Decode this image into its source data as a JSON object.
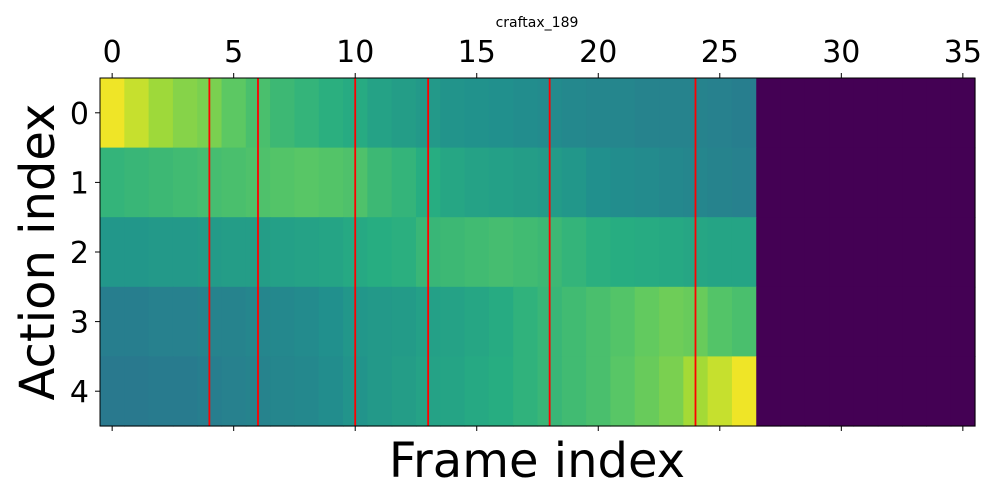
{
  "chart_data": {
    "type": "heatmap",
    "title": "craftax_189",
    "xlabel": "Frame index",
    "ylabel": "Action index",
    "x_ticks": [
      0,
      5,
      10,
      15,
      20,
      25,
      30,
      35
    ],
    "y_ticks": [
      0,
      1,
      2,
      3,
      4
    ],
    "xlim": [
      -0.5,
      35.5
    ],
    "ylim": [
      4.5,
      -0.5
    ],
    "x_tick_labels_position": "top",
    "grid": false,
    "legend": "none",
    "colormap": "viridis",
    "value_range": [
      0,
      1
    ],
    "frames_with_data": 27,
    "red_vertical_lines_x": [
      4,
      6,
      10,
      13,
      18,
      24
    ],
    "red_line_color": "#ff0000",
    "rows": [
      {
        "action": 0,
        "values": [
          0.98,
          0.92,
          0.86,
          0.82,
          0.8,
          0.75,
          0.71,
          0.68,
          0.66,
          0.64,
          0.62,
          0.58,
          0.56,
          0.54,
          0.52,
          0.51,
          0.5,
          0.49,
          0.48,
          0.47,
          0.46,
          0.46,
          0.45,
          0.45,
          0.45,
          0.44,
          0.43,
          0,
          0,
          0,
          0,
          0,
          0,
          0,
          0,
          0
        ]
      },
      {
        "action": 1,
        "values": [
          0.66,
          0.67,
          0.68,
          0.69,
          0.7,
          0.71,
          0.72,
          0.73,
          0.74,
          0.73,
          0.72,
          0.68,
          0.66,
          0.63,
          0.6,
          0.58,
          0.57,
          0.56,
          0.55,
          0.53,
          0.5,
          0.49,
          0.48,
          0.47,
          0.46,
          0.45,
          0.44,
          0,
          0,
          0,
          0,
          0,
          0,
          0,
          0,
          0
        ]
      },
      {
        "action": 2,
        "values": [
          0.53,
          0.53,
          0.54,
          0.54,
          0.55,
          0.56,
          0.56,
          0.57,
          0.58,
          0.59,
          0.61,
          0.63,
          0.64,
          0.67,
          0.68,
          0.69,
          0.7,
          0.69,
          0.68,
          0.66,
          0.64,
          0.63,
          0.62,
          0.61,
          0.6,
          0.59,
          0.59,
          0,
          0,
          0,
          0,
          0,
          0,
          0,
          0,
          0
        ]
      },
      {
        "action": 3,
        "values": [
          0.43,
          0.43,
          0.44,
          0.44,
          0.45,
          0.45,
          0.46,
          0.47,
          0.48,
          0.5,
          0.53,
          0.54,
          0.55,
          0.57,
          0.58,
          0.6,
          0.62,
          0.65,
          0.67,
          0.69,
          0.71,
          0.73,
          0.76,
          0.78,
          0.77,
          0.73,
          0.71,
          0,
          0,
          0,
          0,
          0,
          0,
          0,
          0,
          0
        ]
      },
      {
        "action": 4,
        "values": [
          0.41,
          0.41,
          0.42,
          0.42,
          0.43,
          0.44,
          0.45,
          0.46,
          0.47,
          0.49,
          0.52,
          0.54,
          0.56,
          0.58,
          0.59,
          0.61,
          0.63,
          0.65,
          0.67,
          0.69,
          0.71,
          0.74,
          0.77,
          0.8,
          0.87,
          0.92,
          0.98,
          0,
          0,
          0,
          0,
          0,
          0,
          0,
          0,
          0
        ]
      }
    ]
  }
}
